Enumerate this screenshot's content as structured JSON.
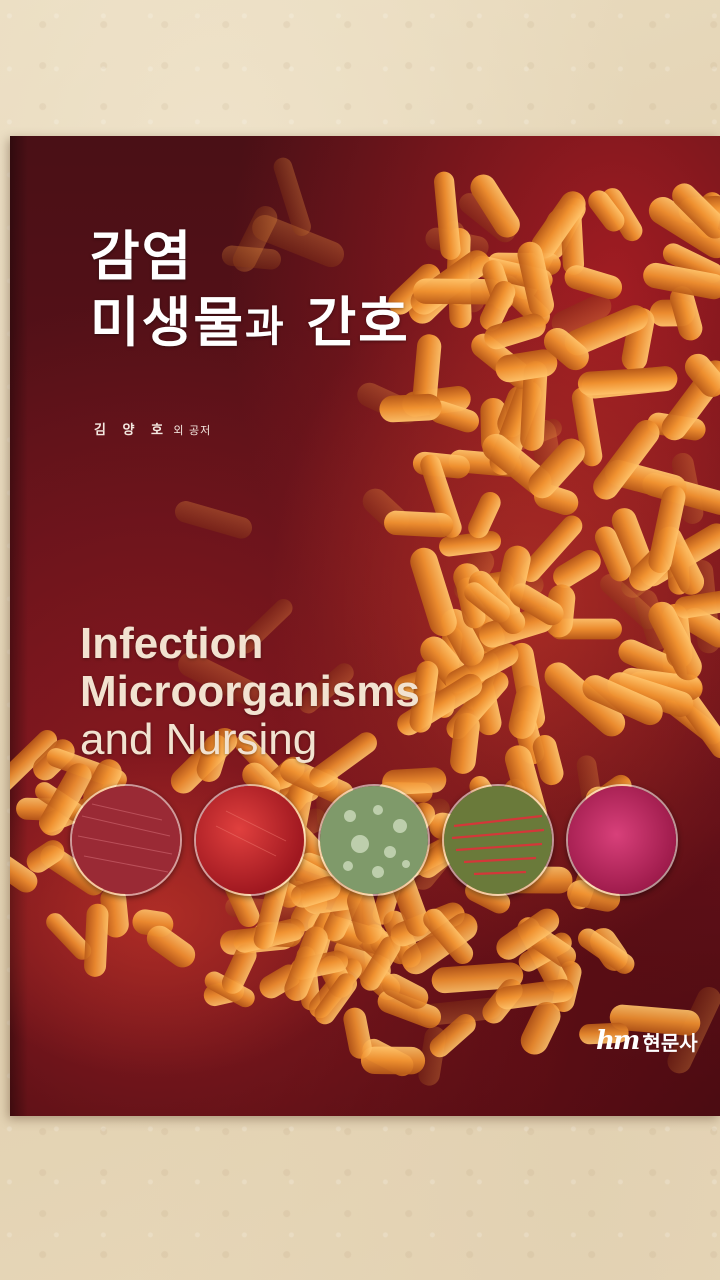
{
  "book": {
    "title_ko_line1": "감염",
    "title_ko_line2_main": "미생물",
    "title_ko_line2_small": "과",
    "title_ko_line2_end": " 간호",
    "author_name": "김 양 호",
    "author_suffix": " 외 공저",
    "title_en_line1": "Infection",
    "title_en_line2": "Microorganisms",
    "title_en_line3": "and Nursing",
    "publisher_logo": "hm",
    "publisher_name": "현문사"
  },
  "colors": {
    "cover_base": "#5c1119",
    "bacteria": "#e8892f",
    "table_surface": "#e6d6b8"
  },
  "culture_plates": [
    {
      "name": "culture-plate-dark-red",
      "color": "#9a2a35"
    },
    {
      "name": "culture-plate-red",
      "color": "#c8262b"
    },
    {
      "name": "culture-plate-green",
      "color": "#7f9a6a"
    },
    {
      "name": "culture-plate-olive-red",
      "color": "#6a7a3a"
    },
    {
      "name": "culture-plate-magenta",
      "color": "#c2306a"
    }
  ]
}
